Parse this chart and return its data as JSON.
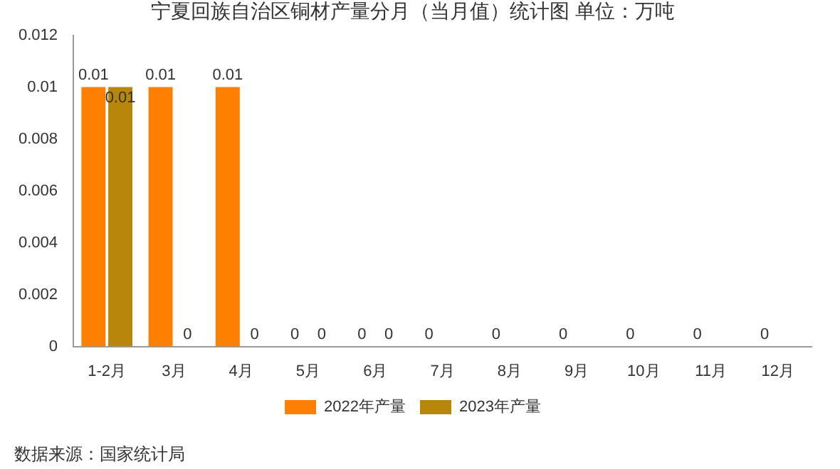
{
  "chart_data": {
    "type": "bar",
    "title": "宁夏回族自治区铜材产量分月（当月值）统计图 单位：万吨",
    "categories": [
      "1-2月",
      "3月",
      "4月",
      "5月",
      "6月",
      "7月",
      "8月",
      "9月",
      "10月",
      "11月",
      "12月"
    ],
    "series": [
      {
        "name": "2022年产量",
        "color": "#ff8000",
        "values": [
          0.01,
          0.01,
          0.01,
          0,
          0,
          0,
          0,
          0,
          0,
          0,
          0
        ]
      },
      {
        "name": "2023年产量",
        "color": "#b8860b",
        "values": [
          0.01,
          0,
          0,
          0,
          0,
          null,
          null,
          null,
          null,
          null,
          null
        ]
      }
    ],
    "ylim": [
      0,
      0.012
    ],
    "yticks": [
      0,
      0.002,
      0.004,
      0.006,
      0.008,
      0.01,
      0.012
    ],
    "grid": false,
    "legend": "bottom",
    "data_labels": true,
    "annotations": [
      "数据来源：国家统计局"
    ]
  }
}
